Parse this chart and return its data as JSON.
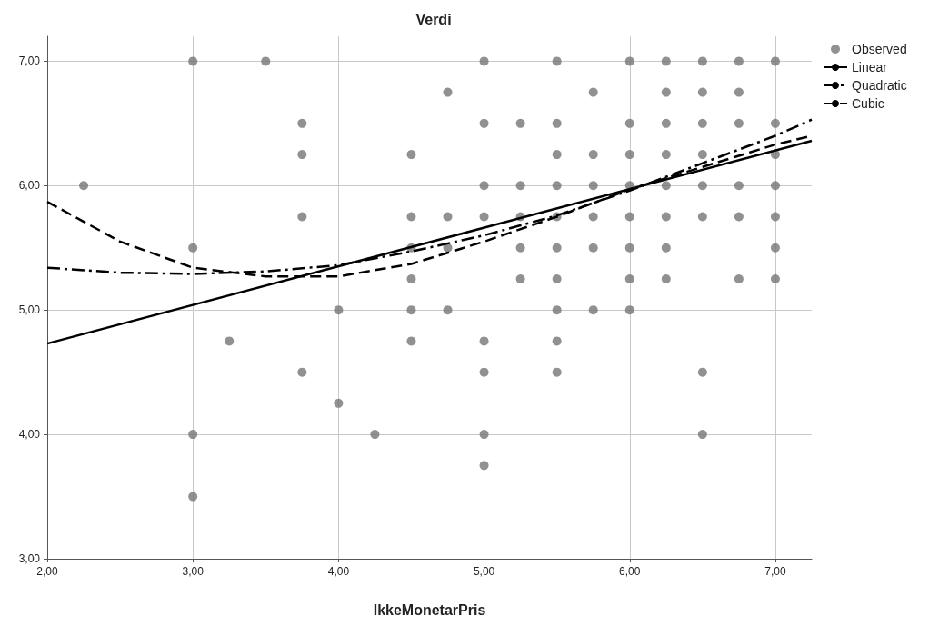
{
  "chart_data": {
    "type": "scatter",
    "title": "Verdi",
    "xlabel": "IkkeMonetarPris",
    "xlim": [
      2,
      7.25
    ],
    "xticks": [
      {
        "value": 2,
        "label": "2,00"
      },
      {
        "value": 3,
        "label": "3,00"
      },
      {
        "value": 4,
        "label": "4,00"
      },
      {
        "value": 5,
        "label": "5,00"
      },
      {
        "value": 6,
        "label": "6,00"
      },
      {
        "value": 7,
        "label": "7,00"
      }
    ],
    "ylim": [
      3,
      7.2
    ],
    "yticks": [
      {
        "value": 3,
        "label": "3,00"
      },
      {
        "value": 4,
        "label": "4,00"
      },
      {
        "value": 5,
        "label": "5,00"
      },
      {
        "value": 6,
        "label": "6,00"
      },
      {
        "value": 7,
        "label": "7,00"
      }
    ],
    "grid": true,
    "legend": "top right",
    "series": [
      {
        "name": "Observed",
        "marker": "circle",
        "color": "#767676",
        "x": [
          2.25,
          3,
          3,
          3,
          3,
          3.25,
          3.5,
          3.75,
          3.75,
          3.75,
          3.75,
          4,
          4,
          4.25,
          4.5,
          4.5,
          4.5,
          4.5,
          4.5,
          4.5,
          4.75,
          4.75,
          4.75,
          4.75,
          5,
          5,
          5,
          5,
          5,
          5,
          5,
          5,
          5.25,
          5.25,
          5.25,
          5.25,
          5.25,
          5.5,
          5.5,
          5.5,
          5.5,
          5.5,
          5.5,
          5.5,
          5.5,
          5.5,
          5.5,
          5.75,
          5.75,
          5.75,
          5.75,
          5.75,
          5.75,
          6,
          6,
          6,
          6,
          6,
          6,
          6,
          6,
          6.25,
          6.25,
          6.25,
          6.25,
          6.25,
          6.25,
          6.25,
          6.25,
          6.5,
          6.5,
          6.5,
          6.5,
          6.5,
          6.5,
          6.5,
          6.5,
          6.75,
          6.75,
          6.75,
          6.75,
          6.75,
          6.75,
          7,
          7,
          7,
          7,
          7,
          7,
          7
        ],
        "values": [
          6,
          7,
          5.5,
          4,
          3.5,
          4.75,
          7,
          6.5,
          6.25,
          5.75,
          4.5,
          5,
          4.25,
          4,
          6.25,
          5.75,
          5.5,
          5.25,
          5,
          4.75,
          6.75,
          5.75,
          5.5,
          5,
          7,
          6.5,
          6,
          5.75,
          4.75,
          4.5,
          4,
          3.75,
          6.5,
          6,
          5.75,
          5.5,
          5.25,
          7,
          6.5,
          6.25,
          6,
          5.75,
          5.5,
          5.25,
          5,
          4.75,
          4.5,
          6.75,
          6.25,
          6,
          5.75,
          5.5,
          5,
          7,
          6.5,
          6.25,
          6,
          5.75,
          5.5,
          5.25,
          5,
          7,
          6.75,
          6.5,
          6.25,
          6,
          5.75,
          5.5,
          5.25,
          7,
          6.75,
          6.5,
          6.25,
          6,
          5.75,
          4.5,
          4,
          7,
          6.75,
          6.5,
          6,
          5.75,
          5.25,
          7,
          6.5,
          6.25,
          6,
          5.75,
          5.5,
          5.25
        ]
      },
      {
        "name": "Linear",
        "type": "line",
        "marker": "none",
        "line_style": "solid",
        "color": "#000000",
        "x": [
          2,
          7.25
        ],
        "values": [
          4.73,
          6.36
        ]
      },
      {
        "name": "Quadratic",
        "type": "line",
        "marker": "none",
        "line_style": "dashdot",
        "color": "#000000",
        "x": [
          2,
          2.5,
          3,
          3.5,
          4,
          4.5,
          5,
          5.5,
          6,
          6.5,
          7,
          7.25
        ],
        "values": [
          5.34,
          5.3,
          5.29,
          5.31,
          5.36,
          5.47,
          5.6,
          5.76,
          5.96,
          6.18,
          6.4,
          6.53
        ]
      },
      {
        "name": "Cubic",
        "type": "line",
        "marker": "none",
        "line_style": "dashed",
        "color": "#000000",
        "x": [
          2,
          2.5,
          3,
          3.5,
          4,
          4.5,
          5,
          5.5,
          6,
          6.5,
          7,
          7.25
        ],
        "values": [
          5.87,
          5.55,
          5.34,
          5.27,
          5.27,
          5.37,
          5.55,
          5.75,
          5.97,
          6.15,
          6.33,
          6.4
        ]
      }
    ]
  }
}
